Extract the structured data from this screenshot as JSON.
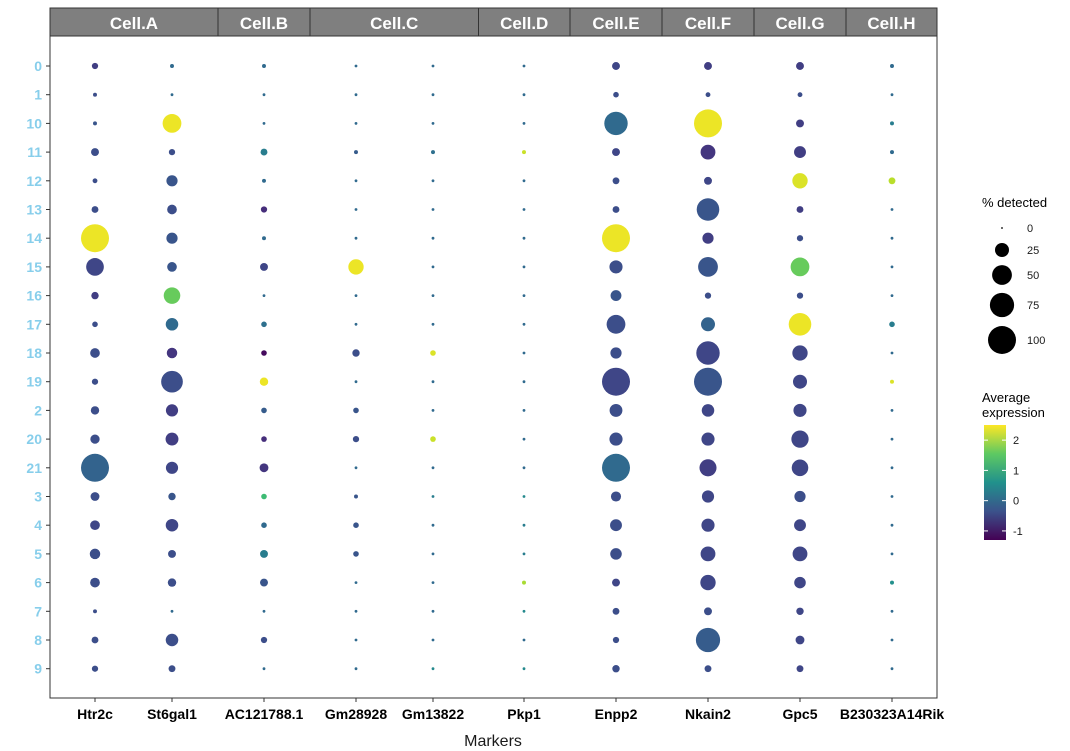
{
  "chart_data": {
    "type": "dot",
    "title": "",
    "xlabel": "Markers",
    "ylabel": "",
    "markers": [
      "Htr2c",
      "St6gal1",
      "AC121788.1",
      "Gm28928",
      "Gm13822",
      "Pkp1",
      "Enpp2",
      "Nkain2",
      "Gpc5",
      "B230323A14Rik"
    ],
    "clusters": [
      "0",
      "1",
      "10",
      "11",
      "12",
      "13",
      "14",
      "15",
      "16",
      "17",
      "18",
      "19",
      "2",
      "20",
      "21",
      "3",
      "4",
      "5",
      "6",
      "7",
      "8",
      "9"
    ],
    "facets": [
      {
        "label": "Cell.A",
        "markers": [
          "Htr2c",
          "St6gal1"
        ]
      },
      {
        "label": "Cell.B",
        "markers": [
          "AC121788.1"
        ]
      },
      {
        "label": "Cell.C",
        "markers": [
          "Gm28928",
          "Gm13822"
        ]
      },
      {
        "label": "Cell.D",
        "markers": [
          "Pkp1"
        ]
      },
      {
        "label": "Cell.E",
        "markers": [
          "Enpp2"
        ]
      },
      {
        "label": "Cell.F",
        "markers": [
          "Nkain2"
        ]
      },
      {
        "label": "Cell.G",
        "markers": [
          "Gpc5"
        ]
      },
      {
        "label": "Cell.H",
        "markers": [
          "B230323A14Rik"
        ]
      }
    ],
    "pct_detected": [
      [
        5,
        2,
        2,
        1,
        1,
        1,
        8,
        8,
        8,
        2
      ],
      [
        2,
        1,
        1,
        1,
        1,
        1,
        4,
        3,
        3,
        1
      ],
      [
        2,
        45,
        1,
        1,
        1,
        1,
        70,
        100,
        8,
        2
      ],
      [
        8,
        5,
        6,
        2,
        2,
        2,
        8,
        28,
        18,
        2
      ],
      [
        3,
        16,
        2,
        1,
        1,
        1,
        6,
        8,
        30,
        6
      ],
      [
        6,
        12,
        5,
        1,
        1,
        1,
        6,
        65,
        6,
        1
      ],
      [
        100,
        16,
        2,
        1,
        1,
        1,
        100,
        16,
        5,
        1
      ],
      [
        40,
        12,
        8,
        30,
        1,
        1,
        22,
        50,
        45,
        1
      ],
      [
        7,
        35,
        1,
        1,
        1,
        1,
        15,
        5,
        5,
        1
      ],
      [
        4,
        20,
        4,
        1,
        1,
        1,
        45,
        25,
        65,
        4
      ],
      [
        12,
        14,
        4,
        7,
        4,
        1,
        16,
        70,
        30,
        1
      ],
      [
        5,
        60,
        9,
        1,
        1,
        1,
        100,
        100,
        25,
        2
      ],
      [
        9,
        19,
        4,
        4,
        1,
        1,
        21,
        20,
        22,
        1
      ],
      [
        11,
        21,
        4,
        5,
        4,
        1,
        22,
        22,
        38,
        1
      ],
      [
        100,
        19,
        10,
        1,
        1,
        1,
        100,
        37,
        35,
        1
      ],
      [
        10,
        7,
        4,
        2,
        1,
        1,
        13,
        19,
        16,
        1
      ],
      [
        12,
        20,
        4,
        4,
        1,
        1,
        18,
        22,
        18,
        1
      ],
      [
        14,
        8,
        8,
        4,
        1,
        1,
        17,
        28,
        28,
        1
      ],
      [
        12,
        9,
        8,
        1,
        1,
        2,
        8,
        30,
        17,
        2
      ],
      [
        2,
        1,
        1,
        1,
        1,
        1,
        6,
        8,
        7,
        1
      ],
      [
        6,
        20,
        5,
        1,
        1,
        1,
        5,
        75,
        10,
        1
      ],
      [
        5,
        6,
        1,
        1,
        1,
        1,
        7,
        6,
        6,
        1
      ]
    ],
    "avg_expression": [
      [
        -0.6,
        0.0,
        0.0,
        0.0,
        0.0,
        0.0,
        -0.5,
        -0.6,
        -0.6,
        0.0
      ],
      [
        -0.4,
        0.0,
        0.0,
        0.0,
        0.0,
        0.0,
        -0.4,
        -0.4,
        -0.4,
        0.0
      ],
      [
        -0.3,
        2.4,
        0.0,
        0.0,
        0.0,
        0.0,
        0.0,
        2.4,
        -0.6,
        0.3
      ],
      [
        -0.4,
        -0.4,
        0.3,
        -0.2,
        0.1,
        2.2,
        -0.5,
        -0.7,
        -0.6,
        0.0
      ],
      [
        -0.4,
        -0.3,
        0.0,
        0.0,
        0.0,
        0.0,
        -0.4,
        -0.5,
        2.3,
        2.1
      ],
      [
        -0.4,
        -0.4,
        -0.8,
        0.0,
        0.0,
        0.0,
        -0.4,
        -0.3,
        -0.6,
        0.0
      ],
      [
        2.4,
        -0.3,
        0.0,
        0.0,
        0.0,
        0.0,
        2.4,
        -0.6,
        -0.4,
        0.0
      ],
      [
        -0.5,
        -0.3,
        -0.5,
        2.4,
        0.0,
        0.0,
        -0.4,
        -0.3,
        1.6,
        0.0
      ],
      [
        -0.6,
        1.6,
        0.0,
        0.0,
        0.0,
        0.0,
        -0.3,
        -0.4,
        -0.4,
        0.0
      ],
      [
        -0.4,
        0.0,
        0.1,
        0.0,
        0.0,
        0.0,
        -0.4,
        -0.1,
        2.4,
        0.3
      ],
      [
        -0.4,
        -0.7,
        -1.2,
        -0.4,
        2.3,
        0.0,
        -0.4,
        -0.5,
        -0.5,
        0.0
      ],
      [
        -0.4,
        -0.4,
        2.4,
        0.0,
        0.0,
        0.0,
        -0.5,
        -0.3,
        -0.5,
        2.3
      ],
      [
        -0.4,
        -0.6,
        -0.2,
        -0.3,
        0.0,
        0.0,
        -0.4,
        -0.5,
        -0.5,
        0.0
      ],
      [
        -0.4,
        -0.6,
        -0.8,
        -0.4,
        2.2,
        0.0,
        -0.4,
        -0.5,
        -0.5,
        0.0
      ],
      [
        -0.1,
        -0.5,
        -0.7,
        0.0,
        0.0,
        0.0,
        0.0,
        -0.6,
        -0.5,
        0.0
      ],
      [
        -0.4,
        -0.3,
        1.3,
        -0.3,
        0.3,
        0.5,
        -0.4,
        -0.5,
        -0.4,
        0.0
      ],
      [
        -0.5,
        -0.5,
        0.0,
        -0.3,
        0.0,
        0.3,
        -0.4,
        -0.5,
        -0.5,
        0.0
      ],
      [
        -0.4,
        -0.4,
        0.3,
        -0.3,
        0.0,
        0.3,
        -0.4,
        -0.5,
        -0.5,
        0.0
      ],
      [
        -0.4,
        -0.4,
        -0.3,
        0.0,
        0.0,
        2.0,
        -0.5,
        -0.5,
        -0.5,
        0.6
      ],
      [
        -0.4,
        0.0,
        0.0,
        0.0,
        0.0,
        0.5,
        -0.4,
        -0.4,
        -0.5,
        0.0
      ],
      [
        -0.4,
        -0.4,
        -0.4,
        0.0,
        0.0,
        0.0,
        -0.4,
        -0.2,
        -0.5,
        0.0
      ],
      [
        -0.4,
        -0.4,
        0.0,
        0.0,
        0.5,
        0.5,
        -0.4,
        -0.4,
        -0.5,
        0.0
      ]
    ],
    "size_legend": {
      "title": "% detected",
      "breaks": [
        0,
        25,
        50,
        75,
        100
      ]
    },
    "color_legend": {
      "title": [
        "Average",
        "expression"
      ],
      "breaks": [
        -1,
        0,
        1,
        2
      ],
      "range": [
        -1.3,
        2.5
      ],
      "palette": "viridis"
    },
    "grid": false,
    "legend_position": "right"
  }
}
